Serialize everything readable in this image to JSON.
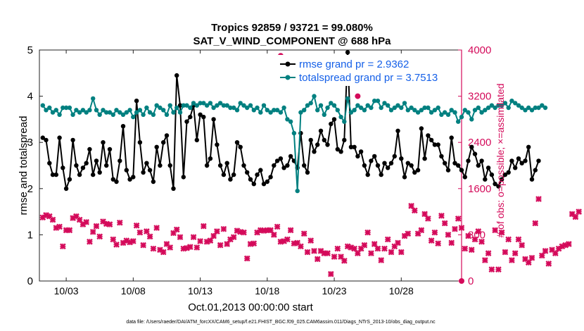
{
  "chart_data": {
    "type": "line",
    "title": "Tropics 92859 / 93721 = 99.080%",
    "subtitle": "SAT_V_WIND_COMPONENT @ 688 hPa",
    "xlabel": "Oct.01,2013 00:00:00 start",
    "ylabel_left": "rmse and totalspread",
    "ylabel_right": "# of obs: o=possible; ×=assimilated",
    "footer": "data file: /Users/raeder/DAI/ATM_forcXX/CAM6_setup/f.e21.FHIST_BGC.f09_025.CAM6assim.011/Diags_NTrS_2013-10/obs_diag_output.nc",
    "xlim": [
      1.0,
      32.5
    ],
    "ylim_left": [
      0,
      5
    ],
    "ylim_right": [
      0,
      4000
    ],
    "x_ticks": [
      3,
      8,
      13,
      18,
      23,
      28
    ],
    "x_tick_labels": [
      "10/03",
      "10/08",
      "10/13",
      "10/18",
      "10/23",
      "10/28"
    ],
    "y_left_ticks": [
      "0",
      "1",
      "2",
      "3",
      "4",
      "5"
    ],
    "y_right_ticks": [
      "0",
      "800",
      "1600",
      "2400",
      "3200",
      "4000"
    ],
    "colors": {
      "rmse": "#000000",
      "spread": "#008080",
      "obs": "#d40a5a",
      "legend_text": "#1560e8"
    },
    "series": [
      {
        "name": "rmse",
        "legend": "rmse grand pr = 2.9362",
        "axis": "left",
        "start": 1.25,
        "step": 0.25,
        "values": [
          3.1,
          3.05,
          2.55,
          2.3,
          2.3,
          3.1,
          2.45,
          2.0,
          2.2,
          3.05,
          2.5,
          2.3,
          2.45,
          2.55,
          2.85,
          2.3,
          2.6,
          2.35,
          3.0,
          2.5,
          2.85,
          2.2,
          2.15,
          2.6,
          3.35,
          2.4,
          2.2,
          2.25,
          3.9,
          3.0,
          2.35,
          2.55,
          2.4,
          2.15,
          2.9,
          2.5,
          3.0,
          3.15,
          2.5,
          2.0,
          4.45,
          3.8,
          2.25,
          3.45,
          3.55,
          3.8,
          3.05,
          3.6,
          3.55,
          2.5,
          2.65,
          3.5,
          2.95,
          2.5,
          2.3,
          2.55,
          2.2,
          2.3,
          3.0,
          2.9,
          2.5,
          2.35,
          2.2,
          2.1,
          2.3,
          2.4,
          2.1,
          2.15,
          2.25,
          2.5,
          2.6,
          2.65,
          2.45,
          2.5,
          2.7,
          2.6,
          2.45,
          3.2,
          2.5,
          2.35,
          3.05,
          2.8,
          2.95,
          3.25,
          3.05,
          2.95,
          3.4,
          3.5,
          2.85,
          2.8,
          3.05,
          4.95,
          2.9,
          2.9,
          2.7,
          2.8,
          2.5,
          2.3,
          2.6,
          2.7,
          2.5,
          2.3,
          2.55,
          2.45,
          2.55,
          2.7,
          3.25,
          2.65,
          2.25,
          2.55,
          2.5,
          2.35,
          2.4,
          3.3,
          2.65,
          3.15,
          3.05,
          2.95,
          2.95,
          2.7,
          2.55,
          2.4,
          3.1,
          2.55,
          2.5,
          2.4,
          2.25,
          2.6,
          2.9,
          2.75,
          2.5,
          2.6,
          2.2,
          2.45,
          2.3,
          2.1,
          2.05,
          2.2,
          2.3,
          2.35,
          2.6,
          2.45,
          2.65,
          2.55,
          2.6,
          2.9,
          2.2,
          2.4,
          2.6
        ]
      },
      {
        "name": "totalspread",
        "legend": "totalspread grand pr = 3.7513",
        "axis": "left",
        "start": 1.25,
        "step": 0.25,
        "values": [
          3.8,
          3.7,
          3.75,
          3.65,
          3.7,
          3.6,
          3.75,
          3.75,
          3.75,
          3.6,
          3.7,
          3.65,
          3.7,
          3.65,
          3.7,
          3.95,
          3.7,
          3.6,
          3.7,
          3.65,
          3.65,
          3.6,
          3.7,
          3.65,
          3.6,
          3.65,
          3.7,
          3.55,
          3.65,
          3.7,
          3.6,
          3.75,
          3.65,
          3.6,
          3.8,
          3.75,
          3.7,
          3.6,
          3.8,
          3.65,
          3.75,
          3.65,
          3.8,
          3.8,
          3.75,
          3.85,
          3.8,
          3.85,
          3.85,
          3.8,
          3.85,
          3.75,
          3.8,
          3.85,
          3.8,
          3.8,
          3.75,
          3.75,
          3.7,
          3.85,
          3.8,
          3.75,
          3.8,
          3.7,
          3.75,
          3.65,
          3.8,
          3.7,
          3.65,
          3.7,
          3.7,
          3.65,
          3.75,
          3.5,
          3.45,
          3.2,
          1.95,
          3.65,
          3.7,
          3.8,
          3.85,
          4.0,
          3.7,
          3.8,
          3.6,
          3.75,
          3.85,
          3.8,
          3.7,
          3.55,
          3.45,
          3.95,
          3.65,
          3.7,
          3.8,
          3.75,
          3.7,
          3.8,
          3.75,
          3.9,
          3.9,
          3.75,
          3.85,
          3.8,
          3.7,
          3.75,
          3.8,
          3.75,
          3.85,
          3.7,
          3.75,
          3.7,
          3.65,
          3.7,
          3.75,
          3.75,
          3.65,
          3.7,
          3.75,
          3.6,
          3.65,
          3.6,
          3.7,
          3.65,
          3.45,
          3.55,
          3.7,
          3.65,
          3.5,
          3.7,
          3.75,
          3.65,
          3.7,
          3.75,
          3.8,
          3.75,
          3.8,
          3.8,
          3.85,
          3.75,
          3.9,
          3.85,
          3.8,
          3.75,
          3.7,
          3.75,
          3.7,
          3.75,
          3.75,
          3.8,
          3.75
        ]
      },
      {
        "name": "obs_assimilated",
        "legend": "",
        "axis": "right",
        "start": 1.25,
        "step": 0.25,
        "values": [
          1100,
          1140,
          1120,
          1060,
          920,
          940,
          600,
          880,
          880,
          1090,
          1120,
          1060,
          980,
          1020,
          680,
          850,
          950,
          770,
          1030,
          990,
          980,
          720,
          630,
          1010,
          660,
          700,
          670,
          690,
          960,
          840,
          620,
          860,
          770,
          560,
          920,
          540,
          500,
          640,
          580,
          830,
          890,
          760,
          560,
          570,
          590,
          760,
          580,
          690,
          950,
          680,
          700,
          780,
          860,
          620,
          900,
          640,
          720,
          760,
          870,
          850,
          840,
          390,
          640,
          650,
          840,
          880,
          870,
          880,
          880,
          800,
          940,
          680,
          690,
          720,
          880,
          650,
          660,
          600,
          820,
          500,
          700,
          520,
          380,
          520,
          480,
          480,
          120,
          420,
          560,
          420,
          350,
          600,
          580,
          560,
          480,
          560,
          620,
          840,
          480,
          640,
          560,
          360,
          560,
          720,
          500,
          600,
          660,
          500,
          780,
          820,
          1300,
          1220,
          820,
          880,
          1160,
          1080,
          700,
          840,
          650,
          1130,
          1000,
          800,
          660,
          900,
          1080,
          920,
          560,
          780,
          540,
          720,
          860,
          680,
          360,
          480,
          200,
          880,
          200,
          840,
          500,
          720,
          360,
          480,
          720,
          620,
          380,
          320,
          400,
          1000,
          1420,
          440,
          520,
          300,
          540,
          480,
          560,
          600,
          620,
          640,
          1160,
          1110,
          1200
        ]
      },
      {
        "name": "obs_possible",
        "legend": "",
        "axis": "right",
        "start": 1.25,
        "step": 0.25,
        "values": [
          1100,
          1140,
          1120,
          1060,
          920,
          940,
          600,
          880,
          880,
          1090,
          1120,
          1060,
          980,
          1020,
          680,
          850,
          950,
          770,
          1030,
          990,
          980,
          720,
          630,
          1010,
          660,
          700,
          670,
          690,
          960,
          840,
          620,
          860,
          770,
          560,
          920,
          540,
          500,
          640,
          580,
          830,
          890,
          760,
          560,
          570,
          590,
          760,
          580,
          690,
          950,
          680,
          700,
          780,
          860,
          620,
          900,
          640,
          720,
          760,
          870,
          850,
          840,
          390,
          640,
          650,
          840,
          880,
          870,
          880,
          880,
          800,
          940,
          680,
          690,
          720,
          880,
          650,
          660,
          600,
          820,
          500,
          700,
          520,
          380,
          520,
          480,
          480,
          120,
          420,
          560,
          420,
          350,
          600,
          580,
          560,
          480,
          560,
          620,
          840,
          480,
          640,
          560,
          360,
          560,
          720,
          500,
          600,
          660,
          500,
          780,
          820,
          1300,
          1220,
          820,
          880,
          1160,
          1080,
          700,
          840,
          650,
          1130,
          1000,
          800,
          660,
          900,
          1080,
          920,
          560,
          780,
          540,
          720,
          860,
          680,
          360,
          480,
          200,
          880,
          200,
          840,
          500,
          720,
          360,
          480,
          720,
          620,
          380,
          320,
          400,
          1000,
          1420,
          440,
          520,
          300,
          540,
          480,
          560,
          600,
          620,
          640,
          1160,
          1110,
          1200
        ]
      }
    ],
    "annotations": [
      "the obs count rises to 3900 near 10/19 and 3200 near 10/24; rmse marker at 10/19 in magenta"
    ]
  }
}
